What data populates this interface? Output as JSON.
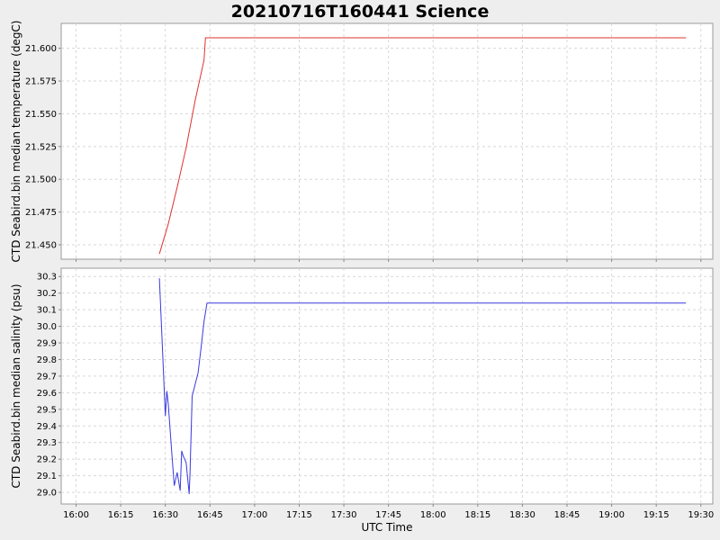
{
  "chart_data": {
    "type": "line",
    "title": "20210716T160441 Science",
    "xlabel": "UTC Time",
    "x_ticks": [
      "16:00",
      "16:15",
      "16:30",
      "16:45",
      "17:00",
      "17:15",
      "17:30",
      "17:45",
      "18:00",
      "18:15",
      "18:30",
      "18:45",
      "19:00",
      "19:15",
      "19:30"
    ],
    "xlim": [
      "15:55",
      "19:34"
    ],
    "grid": true,
    "panels": [
      {
        "ylabel": "CTD Seabird.bin median temperature (degC)",
        "ylim": [
          21.439,
          21.619
        ],
        "y_ticks": [
          "21.450",
          "21.475",
          "21.500",
          "21.525",
          "21.550",
          "21.575",
          "21.600"
        ],
        "series": [
          {
            "color": "#e03030",
            "x": [
              "16:28",
              "16:31",
              "16:34",
              "16:37",
              "16:40",
              "16:43",
              "16:43.5",
              "19:25"
            ],
            "y": [
              21.443,
              21.466,
              21.494,
              21.524,
              21.56,
              21.591,
              21.608,
              21.608
            ]
          }
        ]
      },
      {
        "ylabel": "CTD Seabird.bin median salinity (psu)",
        "ylim": [
          28.93,
          30.35
        ],
        "y_ticks": [
          "29.0",
          "29.1",
          "29.2",
          "29.3",
          "29.4",
          "29.5",
          "29.6",
          "29.7",
          "29.8",
          "29.9",
          "30.0",
          "30.1",
          "30.2",
          "30.3"
        ],
        "series": [
          {
            "color": "#3a3adf",
            "x": [
              "16:28",
              "16:29",
              "16:30",
              "16:30.5",
              "16:31",
              "16:32",
              "16:33",
              "16:34",
              "16:35",
              "16:35.5",
              "16:36",
              "16:37",
              "16:38",
              "16:38.3",
              "16:39",
              "16:40",
              "16:41",
              "16:42",
              "16:43",
              "16:44",
              "19:25"
            ],
            "y": [
              30.29,
              29.88,
              29.46,
              29.61,
              29.53,
              29.28,
              29.04,
              29.12,
              29.01,
              29.25,
              29.22,
              29.18,
              28.99,
              29.11,
              29.58,
              29.65,
              29.72,
              29.87,
              30.03,
              30.14,
              30.14
            ]
          }
        ]
      }
    ]
  }
}
